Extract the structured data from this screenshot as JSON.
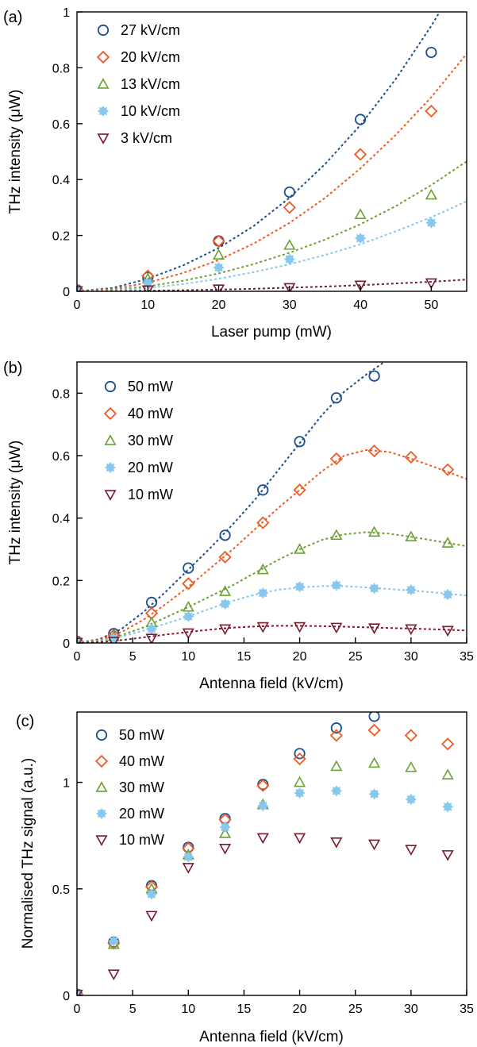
{
  "colors": {
    "dark_blue": "#1b4f8a",
    "orange": "#ee5a24",
    "green": "#6aa132",
    "light_blue": "#86c8ee",
    "dark_red": "#7b1a2c"
  },
  "chart_data": [
    {
      "panel_label": "(a)",
      "type": "scatter",
      "xlabel": "Laser pump (mW)",
      "ylabel": "THz intensity (μW)",
      "xlim": [
        0,
        55
      ],
      "ylim": [
        0,
        1
      ],
      "xticks": [
        "0",
        "10",
        "20",
        "30",
        "40",
        "50"
      ],
      "yticks": [
        "0",
        "0.2",
        "0.4",
        "0.6",
        "0.8",
        "1"
      ],
      "legend_position": "top-left",
      "series": [
        {
          "name": "27 kV/cm",
          "marker": "circle",
          "color": "#1b4f8a",
          "x": [
            0,
            10,
            20,
            30,
            40,
            50
          ],
          "y": [
            0.005,
            0.05,
            0.18,
            0.355,
            0.615,
            0.855
          ],
          "fit": {
            "x": [
              0,
              5,
              10,
              15,
              20,
              25,
              30,
              35,
              40,
              45,
              50,
              55
            ],
            "y": [
              0,
              0.012,
              0.045,
              0.093,
              0.155,
              0.235,
              0.335,
              0.455,
              0.595,
              0.76,
              0.95,
              1.16
            ]
          }
        },
        {
          "name": "20 kV/cm",
          "marker": "diamond",
          "color": "#ee5a24",
          "x": [
            0,
            10,
            20,
            30,
            40,
            50
          ],
          "y": [
            0.005,
            0.055,
            0.18,
            0.3,
            0.49,
            0.645
          ],
          "fit": {
            "x": [
              0,
              5,
              10,
              15,
              20,
              25,
              30,
              35,
              40,
              45,
              50,
              55
            ],
            "y": [
              0,
              0.008,
              0.031,
              0.066,
              0.112,
              0.172,
              0.245,
              0.334,
              0.44,
              0.56,
              0.695,
              0.85
            ]
          }
        },
        {
          "name": "13 kV/cm",
          "marker": "triangle-up",
          "color": "#6aa132",
          "x": [
            0,
            10,
            20,
            30,
            40,
            50
          ],
          "y": [
            0.005,
            0.045,
            0.13,
            0.165,
            0.275,
            0.345
          ],
          "fit": {
            "x": [
              0,
              5,
              10,
              15,
              20,
              25,
              30,
              35,
              40,
              45,
              50,
              55
            ],
            "y": [
              0,
              0.005,
              0.018,
              0.038,
              0.064,
              0.098,
              0.138,
              0.185,
              0.24,
              0.305,
              0.38,
              0.465
            ]
          }
        },
        {
          "name": "10 kV/cm",
          "marker": "star",
          "color": "#86c8ee",
          "x": [
            0,
            10,
            20,
            30,
            40,
            50
          ],
          "y": [
            0.005,
            0.03,
            0.085,
            0.115,
            0.19,
            0.245
          ],
          "fit": {
            "x": [
              0,
              5,
              10,
              15,
              20,
              25,
              30,
              35,
              40,
              45,
              50,
              55
            ],
            "y": [
              0,
              0.003,
              0.012,
              0.026,
              0.045,
              0.069,
              0.097,
              0.13,
              0.168,
              0.215,
              0.265,
              0.322
            ]
          }
        },
        {
          "name": "3 kV/cm",
          "marker": "triangle-down",
          "color": "#7b1a2c",
          "x": [
            0,
            10,
            20,
            30,
            40,
            50
          ],
          "y": [
            0.002,
            0.005,
            0.008,
            0.013,
            0.022,
            0.03
          ],
          "fit": {
            "x": [
              0,
              5,
              10,
              15,
              20,
              25,
              30,
              35,
              40,
              45,
              50,
              55
            ],
            "y": [
              0,
              0.0005,
              0.002,
              0.004,
              0.006,
              0.009,
              0.013,
              0.017,
              0.022,
              0.028,
              0.034,
              0.042
            ]
          }
        }
      ]
    },
    {
      "panel_label": "(b)",
      "type": "scatter",
      "xlabel": "Antenna field (kV/cm)",
      "ylabel": "THz intensity (μW)",
      "xlim": [
        0,
        35
      ],
      "ylim": [
        0,
        0.9
      ],
      "xticks": [
        "0",
        "5",
        "10",
        "15",
        "20",
        "25",
        "30",
        "35"
      ],
      "yticks": [
        "0",
        "0.2",
        "0.4",
        "0.6",
        "0.8"
      ],
      "legend_position": "top-left",
      "series": [
        {
          "name": "50 mW",
          "marker": "circle",
          "color": "#1b4f8a",
          "x": [
            0,
            3.3,
            6.7,
            10,
            13.3,
            16.7,
            20,
            23.3,
            26.7
          ],
          "y": [
            0.005,
            0.03,
            0.13,
            0.24,
            0.345,
            0.49,
            0.645,
            0.785,
            0.855
          ],
          "fit": {
            "x": [
              0,
              2,
              4,
              6,
              8,
              10,
              12,
              14,
              16,
              18,
              20,
              22,
              24,
              26,
              28
            ],
            "y": [
              0,
              0.012,
              0.045,
              0.1,
              0.165,
              0.235,
              0.305,
              0.38,
              0.46,
              0.55,
              0.64,
              0.73,
              0.805,
              0.86,
              0.91
            ]
          }
        },
        {
          "name": "40 mW",
          "marker": "diamond",
          "color": "#ee5a24",
          "x": [
            0,
            3.3,
            6.7,
            10,
            13.3,
            16.7,
            20,
            23.3,
            26.7,
            30,
            33.3
          ],
          "y": [
            0.005,
            0.025,
            0.095,
            0.19,
            0.275,
            0.385,
            0.49,
            0.59,
            0.615,
            0.595,
            0.555
          ],
          "fit": {
            "x": [
              0,
              2,
              4,
              6,
              8,
              10,
              12,
              14,
              16,
              18,
              20,
              22,
              24,
              26,
              28,
              30,
              32,
              35
            ],
            "y": [
              0,
              0.01,
              0.035,
              0.075,
              0.125,
              0.18,
              0.24,
              0.3,
              0.365,
              0.43,
              0.49,
              0.55,
              0.6,
              0.618,
              0.612,
              0.59,
              0.565,
              0.525
            ]
          }
        },
        {
          "name": "30 mW",
          "marker": "triangle-up",
          "color": "#6aa132",
          "x": [
            0,
            3.3,
            6.7,
            10,
            13.3,
            16.7,
            20,
            23.3,
            26.7,
            30,
            33.3
          ],
          "y": [
            0.005,
            0.02,
            0.065,
            0.115,
            0.165,
            0.235,
            0.3,
            0.345,
            0.355,
            0.34,
            0.32
          ],
          "fit": {
            "x": [
              0,
              2,
              4,
              6,
              8,
              10,
              12,
              14,
              16,
              18,
              20,
              22,
              24,
              26,
              28,
              30,
              32,
              35
            ],
            "y": [
              0,
              0.007,
              0.025,
              0.05,
              0.082,
              0.115,
              0.15,
              0.185,
              0.225,
              0.265,
              0.3,
              0.33,
              0.348,
              0.355,
              0.35,
              0.34,
              0.328,
              0.31
            ]
          }
        },
        {
          "name": "20 mW",
          "marker": "star",
          "color": "#86c8ee",
          "x": [
            0,
            3.3,
            6.7,
            10,
            13.3,
            16.7,
            20,
            23.3,
            26.7,
            30,
            33.3
          ],
          "y": [
            0.005,
            0.015,
            0.045,
            0.085,
            0.125,
            0.16,
            0.18,
            0.185,
            0.175,
            0.17,
            0.155
          ],
          "fit": {
            "x": [
              0,
              2,
              4,
              6,
              8,
              10,
              12,
              14,
              16,
              18,
              20,
              22,
              24,
              26,
              28,
              30,
              32,
              35
            ],
            "y": [
              0,
              0.006,
              0.02,
              0.04,
              0.062,
              0.085,
              0.11,
              0.135,
              0.155,
              0.17,
              0.178,
              0.182,
              0.182,
              0.178,
              0.173,
              0.168,
              0.162,
              0.152
            ]
          }
        },
        {
          "name": "10 mW",
          "marker": "triangle-down",
          "color": "#7b1a2c",
          "x": [
            0,
            3.3,
            6.7,
            10,
            13.3,
            16.7,
            20,
            23.3,
            26.7,
            30,
            33.3
          ],
          "y": [
            0.002,
            0.005,
            0.015,
            0.032,
            0.045,
            0.052,
            0.052,
            0.05,
            0.048,
            0.045,
            0.04
          ],
          "fit": {
            "x": [
              0,
              2,
              4,
              6,
              8,
              10,
              12,
              14,
              16,
              18,
              20,
              22,
              24,
              26,
              28,
              30,
              32,
              35
            ],
            "y": [
              0,
              0.003,
              0.009,
              0.018,
              0.027,
              0.035,
              0.043,
              0.049,
              0.053,
              0.055,
              0.055,
              0.054,
              0.052,
              0.05,
              0.048,
              0.046,
              0.044,
              0.04
            ]
          }
        }
      ]
    },
    {
      "panel_label": "(c)",
      "type": "scatter",
      "xlabel": "Antenna field (kV/cm)",
      "ylabel": "Normalised THz signal (a.u.)",
      "xlim": [
        0,
        35
      ],
      "ylim": [
        0,
        1.33
      ],
      "xticks": [
        "0",
        "5",
        "10",
        "15",
        "20",
        "25",
        "30",
        "35"
      ],
      "yticks": [
        "0",
        "0.5",
        "1"
      ],
      "legend_position": "top-left",
      "series": [
        {
          "name": "50 mW",
          "marker": "circle",
          "color": "#1b4f8a",
          "x": [
            0,
            3.3,
            6.7,
            10,
            13.3,
            16.7,
            20,
            23.3,
            26.7
          ],
          "y": [
            0.005,
            0.25,
            0.515,
            0.695,
            0.83,
            0.99,
            1.135,
            1.255,
            1.31
          ]
        },
        {
          "name": "40 mW",
          "marker": "diamond",
          "color": "#ee5a24",
          "x": [
            0,
            3.3,
            6.7,
            10,
            13.3,
            16.7,
            20,
            23.3,
            26.7,
            30,
            33.3
          ],
          "y": [
            0.005,
            0.245,
            0.51,
            0.69,
            0.825,
            0.985,
            1.11,
            1.22,
            1.245,
            1.22,
            1.18
          ]
        },
        {
          "name": "30 mW",
          "marker": "triangle-up",
          "color": "#6aa132",
          "x": [
            0,
            3.3,
            6.7,
            10,
            13.3,
            16.7,
            20,
            23.3,
            26.7,
            30,
            33.3
          ],
          "y": [
            0.005,
            0.24,
            0.5,
            0.66,
            0.76,
            0.895,
            1.0,
            1.075,
            1.09,
            1.07,
            1.035
          ]
        },
        {
          "name": "20 mW",
          "marker": "star",
          "color": "#86c8ee",
          "x": [
            0,
            3.3,
            6.7,
            10,
            13.3,
            16.7,
            20,
            23.3,
            26.7,
            30,
            33.3
          ],
          "y": [
            0.005,
            0.255,
            0.475,
            0.65,
            0.79,
            0.89,
            0.95,
            0.96,
            0.945,
            0.92,
            0.885
          ]
        },
        {
          "name": "10 mW",
          "marker": "triangle-down",
          "color": "#7b1a2c",
          "x": [
            0,
            3.3,
            6.7,
            10,
            13.3,
            16.7,
            20,
            23.3,
            26.7,
            30,
            33.3
          ],
          "y": [
            0.005,
            0.1,
            0.375,
            0.6,
            0.69,
            0.74,
            0.74,
            0.72,
            0.71,
            0.685,
            0.66
          ]
        }
      ]
    }
  ]
}
